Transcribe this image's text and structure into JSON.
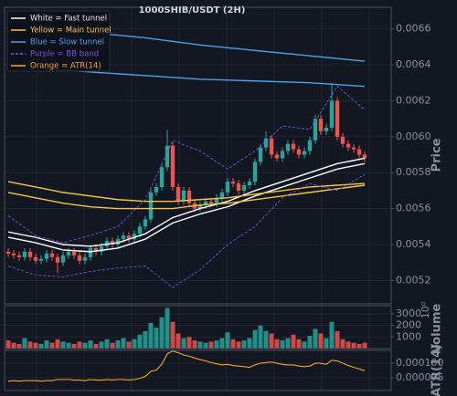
{
  "chart_data": {
    "type": "candlestick",
    "title": "1000SHIB/USDT (2H)",
    "y_label": "Price",
    "ylim": [
      0.00507,
      0.00672
    ],
    "yticks": [
      0.0052,
      0.0054,
      0.0056,
      0.0058,
      {
        "value": 0.006,
        "label": "0.0060"
      },
      0.0062,
      0.0064,
      0.0066
    ],
    "grid": true,
    "up_color": "#26a69a",
    "down_color": "#ef5350",
    "open": [
      0.00536,
      0.00535,
      0.00534,
      0.00533,
      0.00536,
      0.00533,
      0.00531,
      0.00532,
      0.00535,
      0.00533,
      0.0053,
      0.00534,
      0.00536,
      0.00534,
      0.00531,
      0.00533,
      0.00538,
      0.00536,
      0.00539,
      0.00542,
      0.0054,
      0.00543,
      0.00545,
      0.00543,
      0.00546,
      0.0055,
      0.00554,
      0.00569,
      0.00572,
      0.00583,
      0.00595,
      0.00572,
      0.00564,
      0.0057,
      0.00563,
      0.0056,
      0.00562,
      0.00564,
      0.00563,
      0.00566,
      0.00569,
      0.00575,
      0.00574,
      0.0057,
      0.00573,
      0.00575,
      0.00586,
      0.00594,
      0.00599,
      0.0059,
      0.00588,
      0.00592,
      0.00596,
      0.00593,
      0.0059,
      0.00592,
      0.00598,
      0.0061,
      0.00603,
      0.00605,
      0.0062,
      0.006,
      0.00596,
      0.00594,
      0.00593,
      0.0059
    ],
    "high": [
      0.00538,
      0.00537,
      0.00536,
      0.00538,
      0.00538,
      0.00535,
      0.00534,
      0.00537,
      0.00537,
      0.00535,
      0.00536,
      0.00538,
      0.00538,
      0.00536,
      0.00535,
      0.0054,
      0.0054,
      0.00541,
      0.00544,
      0.00544,
      0.00545,
      0.00547,
      0.00547,
      0.00548,
      0.00552,
      0.00556,
      0.00571,
      0.00574,
      0.00585,
      0.00604,
      0.00597,
      0.00574,
      0.00572,
      0.00572,
      0.00565,
      0.00564,
      0.00566,
      0.00566,
      0.00568,
      0.00571,
      0.00577,
      0.00577,
      0.00576,
      0.00575,
      0.00577,
      0.00588,
      0.00596,
      0.00603,
      0.00601,
      0.00592,
      0.00594,
      0.00598,
      0.00598,
      0.00595,
      0.00594,
      0.006,
      0.00612,
      0.00612,
      0.00607,
      0.0063,
      0.00622,
      0.00602,
      0.00598,
      0.00596,
      0.00595,
      0.00592
    ],
    "low": [
      0.00533,
      0.00532,
      0.00531,
      0.00531,
      0.00531,
      0.00529,
      0.00529,
      0.0053,
      0.00531,
      0.00524,
      0.00528,
      0.00532,
      0.00532,
      0.00529,
      0.00529,
      0.00531,
      0.00534,
      0.00534,
      0.00537,
      0.00538,
      0.00538,
      0.00541,
      0.00541,
      0.00541,
      0.00544,
      0.00548,
      0.00552,
      0.00567,
      0.0057,
      0.00581,
      0.0057,
      0.00562,
      0.00562,
      0.00561,
      0.00558,
      0.00558,
      0.0056,
      0.00561,
      0.00561,
      0.00564,
      0.00567,
      0.00572,
      0.00568,
      0.00568,
      0.00571,
      0.00573,
      0.00584,
      0.00592,
      0.00588,
      0.00586,
      0.00586,
      0.0059,
      0.00591,
      0.00588,
      0.00588,
      0.0059,
      0.00596,
      0.00601,
      0.00601,
      0.00603,
      0.00598,
      0.00594,
      0.00592,
      0.00591,
      0.00588,
      0.00586
    ],
    "close": [
      0.00535,
      0.00534,
      0.00533,
      0.00536,
      0.00533,
      0.00531,
      0.00532,
      0.00535,
      0.00533,
      0.0053,
      0.00534,
      0.00536,
      0.00534,
      0.00531,
      0.00533,
      0.00538,
      0.00536,
      0.00539,
      0.00542,
      0.0054,
      0.00543,
      0.00545,
      0.00543,
      0.00546,
      0.0055,
      0.00554,
      0.00569,
      0.00572,
      0.00583,
      0.00595,
      0.00572,
      0.00564,
      0.0057,
      0.00563,
      0.0056,
      0.00562,
      0.00564,
      0.00563,
      0.00566,
      0.00569,
      0.00575,
      0.00574,
      0.0057,
      0.00573,
      0.00575,
      0.00586,
      0.00594,
      0.00599,
      0.0059,
      0.00588,
      0.00592,
      0.00596,
      0.00593,
      0.0059,
      0.00592,
      0.00598,
      0.0061,
      0.00603,
      0.00605,
      0.0062,
      0.006,
      0.00596,
      0.00594,
      0.00593,
      0.0059,
      0.00588
    ],
    "overlays": [
      {
        "name": "White = Fast tunnel",
        "color": "#ffffff",
        "dashed": false,
        "lines": [
          {
            "x": [
              0,
              5,
              10,
              15,
              20,
              25,
              30,
              35,
              40,
              45,
              50,
              55,
              60,
              65
            ],
            "values": [
              0.00547,
              0.00544,
              0.0054,
              0.00539,
              0.00541,
              0.00546,
              0.00555,
              0.0056,
              0.00564,
              0.0057,
              0.00575,
              0.0058,
              0.00585,
              0.00588
            ]
          },
          {
            "x": [
              0,
              5,
              10,
              15,
              20,
              25,
              30,
              35,
              40,
              45,
              50,
              55,
              60,
              65
            ],
            "values": [
              0.00544,
              0.00541,
              0.00537,
              0.00536,
              0.00538,
              0.00543,
              0.00552,
              0.00557,
              0.00561,
              0.00567,
              0.00572,
              0.00577,
              0.00582,
              0.00585
            ]
          }
        ]
      },
      {
        "name": "Yellow = Main tunnel",
        "color": "#f5c542",
        "dashed": false,
        "lines": [
          {
            "x": [
              0,
              5,
              10,
              15,
              20,
              25,
              30,
              35,
              40,
              45,
              50,
              55,
              60,
              65
            ],
            "values": [
              0.00575,
              0.00572,
              0.00569,
              0.00567,
              0.00565,
              0.00564,
              0.00564,
              0.00565,
              0.00566,
              0.00568,
              0.0057,
              0.00572,
              0.00573,
              0.00574
            ]
          },
          {
            "x": [
              0,
              5,
              10,
              15,
              20,
              25,
              30,
              35,
              40,
              45,
              50,
              55,
              60,
              65
            ],
            "values": [
              0.00569,
              0.00566,
              0.00563,
              0.00561,
              0.0056,
              0.0056,
              0.0056,
              0.00562,
              0.00563,
              0.00565,
              0.00567,
              0.00569,
              0.00571,
              0.00573
            ]
          }
        ]
      },
      {
        "name": "Blue = Slow tunnel",
        "color": "#4aa3e8",
        "dashed": false,
        "lines": [
          {
            "x": [
              8,
              15,
              25,
              35,
              45,
              55,
              65
            ],
            "values": [
              0.00661,
              0.00658,
              0.00655,
              0.00651,
              0.00648,
              0.00645,
              0.00642
            ]
          },
          {
            "x": [
              6,
              15,
              25,
              35,
              45,
              55,
              65
            ],
            "values": [
              0.00638,
              0.00636,
              0.00634,
              0.00632,
              0.00631,
              0.0063,
              0.00628
            ]
          }
        ]
      },
      {
        "name": "Purple = BB band",
        "color": "#7b52e0",
        "dashed": true,
        "lines": [
          {
            "x": [
              0,
              5,
              10,
              15,
              20,
              25,
              30,
              35,
              40,
              45,
              50,
              55,
              60,
              65
            ],
            "values": [
              0.00556,
              0.00545,
              0.00541,
              0.00545,
              0.0055,
              0.00565,
              0.00598,
              0.00592,
              0.00582,
              0.00592,
              0.00606,
              0.00604,
              0.00628,
              0.00615
            ]
          },
          {
            "x": [
              0,
              5,
              10,
              15,
              20,
              25,
              30,
              35,
              40,
              45,
              50,
              55,
              60,
              65
            ],
            "values": [
              0.00528,
              0.00523,
              0.00522,
              0.00525,
              0.00527,
              0.00528,
              0.00516,
              0.00526,
              0.0054,
              0.0055,
              0.00566,
              0.00574,
              0.0057,
              0.00579
            ]
          }
        ]
      }
    ],
    "volume": {
      "label": "Volume",
      "offset_text": "10⁰",
      "ylim": [
        0,
        3700
      ],
      "yticks": [
        1000,
        2000,
        3000
      ],
      "values": [
        700,
        500,
        400,
        900,
        600,
        500,
        400,
        700,
        500,
        800,
        600,
        500,
        400,
        600,
        500,
        700,
        400,
        600,
        800,
        500,
        700,
        900,
        600,
        800,
        1200,
        1500,
        2200,
        1800,
        2700,
        3500,
        2300,
        1300,
        900,
        1000,
        700,
        600,
        500,
        600,
        700,
        900,
        1400,
        800,
        600,
        700,
        900,
        1600,
        2000,
        1500,
        1300,
        800,
        700,
        900,
        1200,
        800,
        600,
        1100,
        1700,
        1300,
        900,
        2300,
        1500,
        800,
        600,
        500,
        400,
        500
      ]
    },
    "atr": {
      "name": "Orange = ATR(14)",
      "label": "ATR(14)",
      "color": "#f5a623",
      "ylim": [
        5.3e-05,
        0.000122
      ],
      "yticks": [
        7.5e-05,
        {
          "value": 0.0001,
          "label": "0.000100"
        }
      ],
      "values": [
        6.9e-05,
        7e-05,
        6.9e-05,
        7e-05,
        7e-05,
        7e-05,
        6.9e-05,
        7e-05,
        7e-05,
        7.2e-05,
        7.2e-05,
        7.2e-05,
        7.1e-05,
        7.1e-05,
        7e-05,
        7.2e-05,
        7.1e-05,
        7.1e-05,
        7.2e-05,
        7.1e-05,
        7.2e-05,
        7.2e-05,
        7.1e-05,
        7.2e-05,
        7.4e-05,
        7.7e-05,
        8.6e-05,
        8.8e-05,
        9.8e-05,
        0.000116,
        0.000121,
        0.000118,
        0.000114,
        0.000112,
        0.000109,
        0.000106,
        0.000104,
        0.000101,
        9.9e-05,
        9.7e-05,
        9.8e-05,
        9.6e-05,
        9.5e-05,
        9.4e-05,
        9.3e-05,
        9.7e-05,
        0.0001,
        0.000101,
        0.000102,
        0.0001,
        9.8e-05,
        9.7e-05,
        9.7e-05,
        9.5e-05,
        9.4e-05,
        9.5e-05,
        0.0001,
        0.0001,
        9.8e-05,
        0.000105,
        0.000104,
        0.0001,
        9.6e-05,
        9.3e-05,
        9e-05,
        8.7e-05
      ]
    }
  }
}
